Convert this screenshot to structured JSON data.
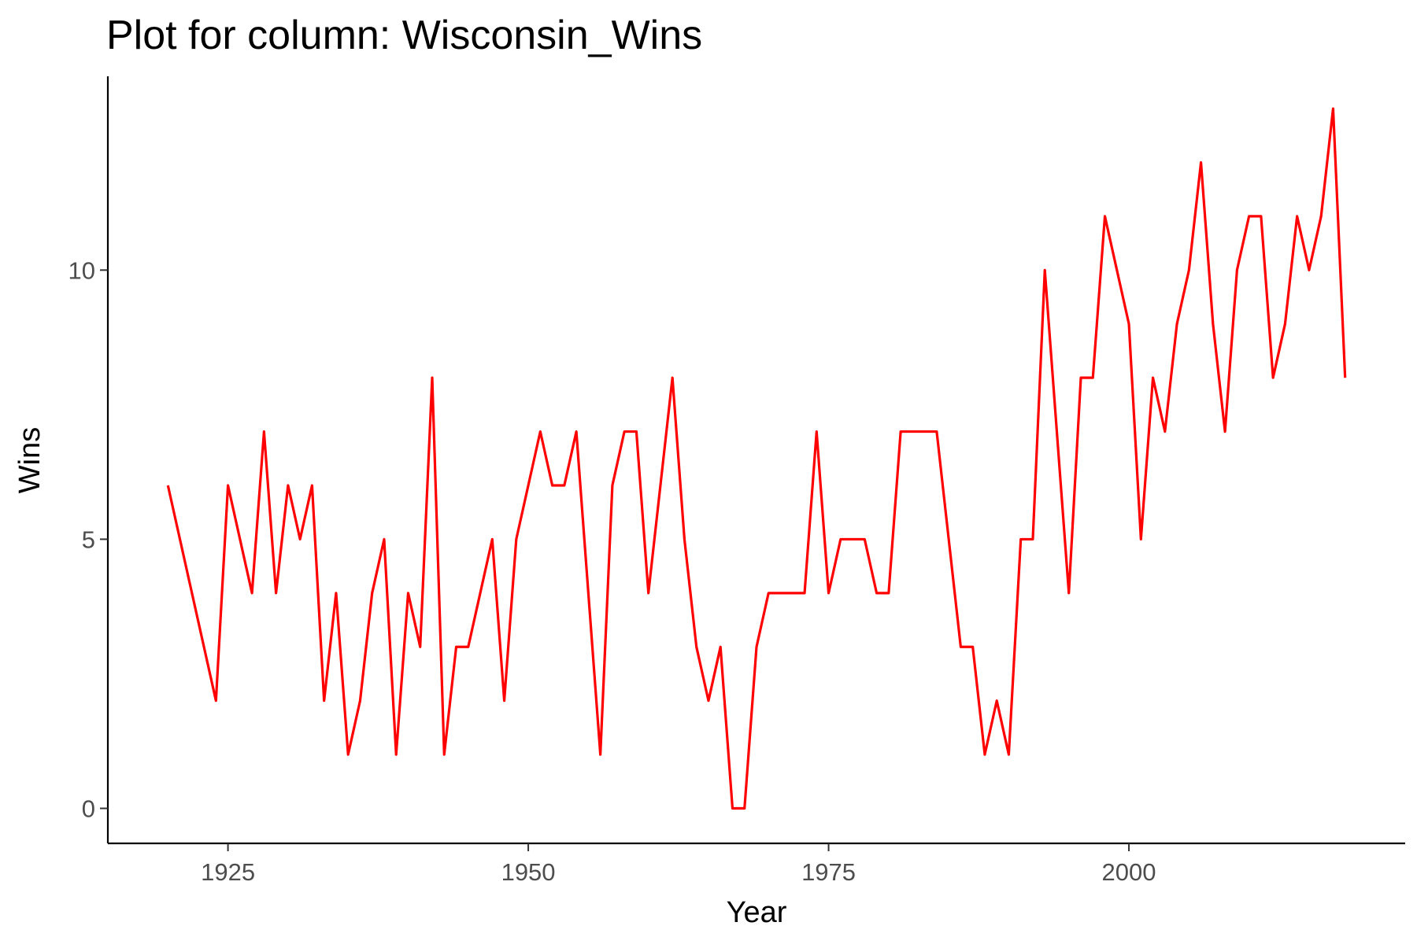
{
  "chart_data": {
    "type": "line",
    "title": "Plot for column:  Wisconsin_Wins",
    "xlabel": "Year",
    "ylabel": "Wins",
    "xlim": [
      1915,
      2023
    ],
    "ylim": [
      -0.65,
      13.6
    ],
    "x_ticks": [
      1925,
      1950,
      1975,
      2000
    ],
    "y_ticks": [
      0,
      5,
      10
    ],
    "grid": false,
    "legend": "none",
    "series": [
      {
        "color": "#ff0000",
        "x": [
          1920,
          1924,
          1925,
          1927,
          1928,
          1929,
          1930,
          1931,
          1932,
          1933,
          1934,
          1935,
          1936,
          1937,
          1938,
          1939,
          1940,
          1941,
          1942,
          1943,
          1944,
          1945,
          1947,
          1948,
          1949,
          1951,
          1952,
          1953,
          1954,
          1956,
          1957,
          1958,
          1959,
          1960,
          1962,
          1963,
          1964,
          1965,
          1966,
          1967,
          1968,
          1969,
          1970,
          1971,
          1972,
          1973,
          1974,
          1975,
          1976,
          1977,
          1978,
          1979,
          1980,
          1981,
          1982,
          1983,
          1984,
          1986,
          1987,
          1988,
          1989,
          1990,
          1991,
          1992,
          1993,
          1995,
          1996,
          1997,
          1998,
          2000,
          2001,
          2002,
          2003,
          2004,
          2005,
          2006,
          2007,
          2008,
          2009,
          2010,
          2011,
          2012,
          2013,
          2014,
          2015,
          2016,
          2017,
          2018
        ],
        "y": [
          6,
          2,
          6,
          4,
          7,
          4,
          6,
          5,
          6,
          2,
          4,
          1,
          2,
          4,
          5,
          1,
          4,
          3,
          8,
          1,
          3,
          3,
          5,
          2,
          5,
          7,
          6,
          6,
          7,
          1,
          6,
          7,
          7,
          4,
          8,
          5,
          3,
          2,
          3,
          0,
          0,
          3,
          4,
          4,
          4,
          4,
          7,
          4,
          5,
          5,
          5,
          4,
          4,
          7,
          7,
          7,
          7,
          3,
          3,
          1,
          2,
          1,
          5,
          5,
          10,
          4,
          8,
          8,
          11,
          9,
          5,
          8,
          7,
          9,
          10,
          12,
          9,
          7,
          10,
          11,
          11,
          8,
          9,
          11,
          10,
          11,
          13,
          8
        ]
      }
    ]
  }
}
